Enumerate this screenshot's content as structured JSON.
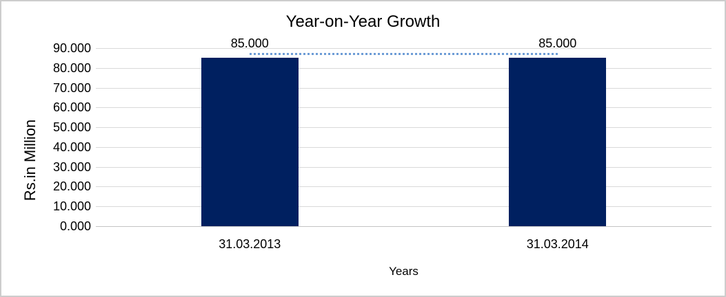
{
  "chart_data": {
    "type": "bar",
    "title": "Year-on-Year Growth",
    "xlabel": "Years",
    "ylabel": "Rs.in Million",
    "categories": [
      "31.03.2013",
      "31.03.2014"
    ],
    "values": [
      85,
      85
    ],
    "data_labels": [
      "85.000",
      "85.000"
    ],
    "ylim": [
      0,
      90
    ],
    "ytick_values": [
      0,
      10,
      20,
      30,
      40,
      50,
      60,
      70,
      80,
      90
    ],
    "ytick_labels": [
      "0.000",
      "10.000",
      "20.000",
      "30.000",
      "40.000",
      "50.000",
      "60.000",
      "70.000",
      "80.000",
      "90.000"
    ],
    "grid": true,
    "legend": "none",
    "trendline": {
      "type": "linear",
      "style": "dotted",
      "spans": "bar-centers"
    },
    "colors": {
      "bar": "#002060",
      "gridline": "#d9d9d9",
      "zero_line": "#c4c4c4",
      "trendline": "#6d9cd6",
      "text": "#000000",
      "frame_border": "#cdcdcd",
      "background": "#ffffff"
    }
  }
}
